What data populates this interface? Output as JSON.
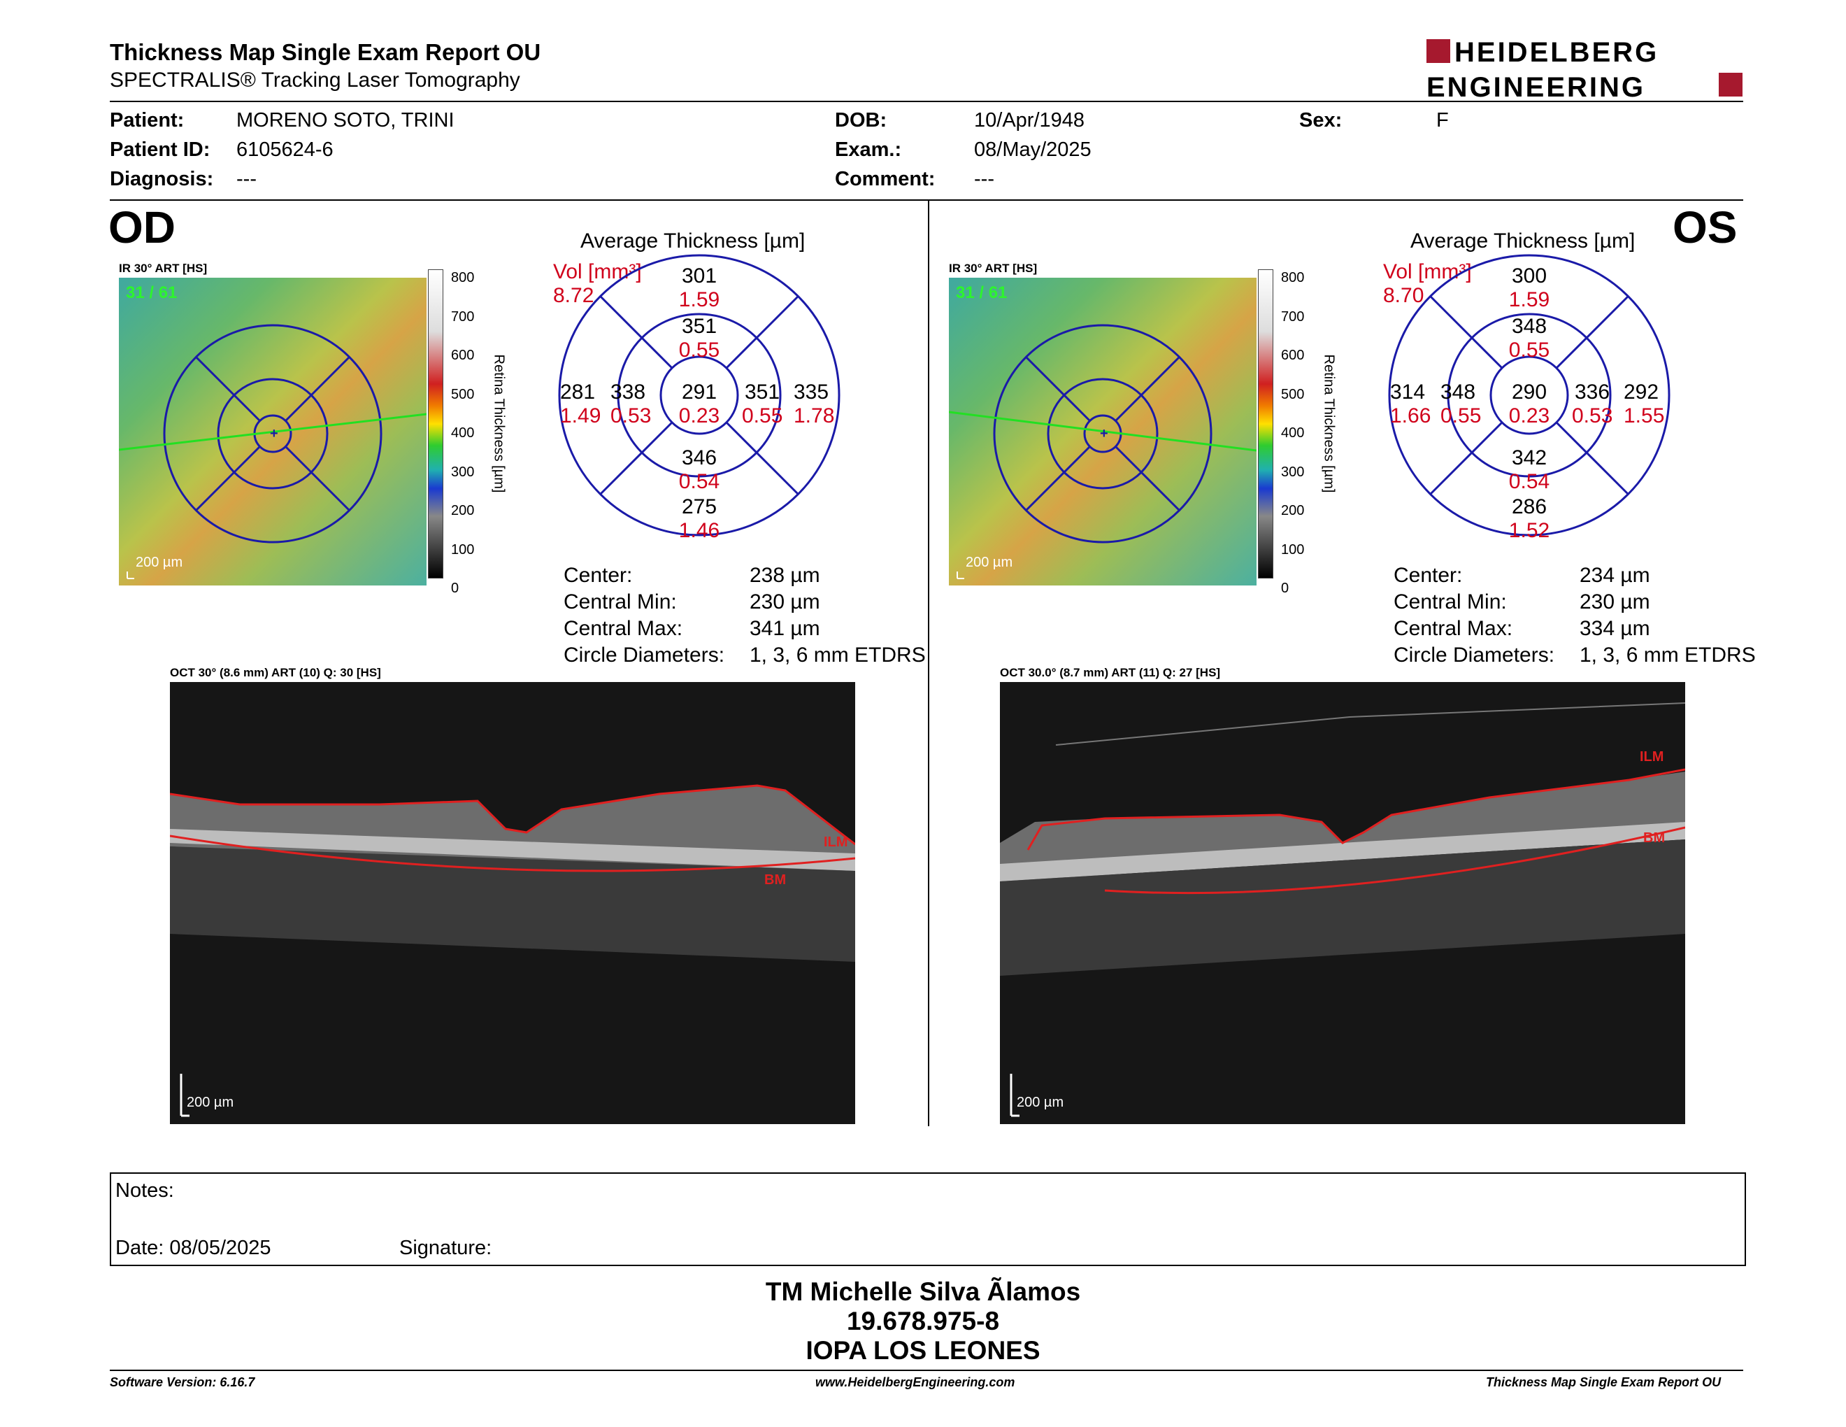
{
  "header": {
    "title": "Thickness Map Single Exam Report OU",
    "subtitle": "SPECTRALIS® Tracking Laser Tomography",
    "logo_line1": "HEIDELBERG",
    "logo_line2": "ENGINEERING"
  },
  "patient": {
    "patient_label": "Patient:",
    "patient": "MORENO SOTO, TRINI",
    "id_label": "Patient ID:",
    "id": "6105624-6",
    "diagnosis_label": "Diagnosis:",
    "diagnosis": "---",
    "dob_label": "DOB:",
    "dob": "10/Apr/1948",
    "exam_label": "Exam.:",
    "exam": "08/May/2025",
    "comment_label": "Comment:",
    "comment": "---",
    "sex_label": "Sex:",
    "sex": "F"
  },
  "scale": {
    "ticks": [
      "800",
      "700",
      "600",
      "500",
      "400",
      "300",
      "200",
      "100",
      "0"
    ],
    "label": "Retina Thickness [µm]"
  },
  "od": {
    "eye": "OD",
    "ir_label": "IR 30° ART [HS]",
    "frame": "31 / 61",
    "map_scale": "200 µm",
    "avg_title": "Average Thickness [µm]",
    "vol_label": "Vol [mm³]",
    "vol": "8.72",
    "sectors": {
      "outer_sup": "301",
      "outer_sup_v": "1.59",
      "inner_sup": "351",
      "inner_sup_v": "0.55",
      "outer_temp": "281",
      "outer_temp_v": "1.49",
      "inner_temp": "338",
      "inner_temp_v": "0.53",
      "center": "291",
      "center_v": "0.23",
      "inner_nas": "351",
      "inner_nas_v": "0.55",
      "outer_nas": "335",
      "outer_nas_v": "1.78",
      "inner_inf": "346",
      "inner_inf_v": "0.54",
      "outer_inf": "275",
      "outer_inf_v": "1.46"
    },
    "stats": {
      "center_label": "Center:",
      "center": "238 µm",
      "min_label": "Central Min:",
      "min": "230 µm",
      "max_label": "Central Max:",
      "max": "341 µm",
      "diam_label": "Circle Diameters:",
      "diam": "1, 3, 6 mm ETDRS"
    },
    "oct_label": "OCT 30° (8.6 mm) ART (10) Q: 30 [HS]",
    "oct_scale": "200 µm",
    "ilm": "ILM",
    "bm": "BM"
  },
  "os": {
    "eye": "OS",
    "ir_label": "IR 30° ART [HS]",
    "frame": "31 / 61",
    "map_scale": "200 µm",
    "avg_title": "Average Thickness [µm]",
    "vol_label": "Vol [mm³]",
    "vol": "8.70",
    "sectors": {
      "outer_sup": "300",
      "outer_sup_v": "1.59",
      "inner_sup": "348",
      "inner_sup_v": "0.55",
      "outer_temp": "314",
      "outer_temp_v": "1.66",
      "inner_temp": "348",
      "inner_temp_v": "0.55",
      "center": "290",
      "center_v": "0.23",
      "inner_nas": "336",
      "inner_nas_v": "0.53",
      "outer_nas": "292",
      "outer_nas_v": "1.55",
      "inner_inf": "342",
      "inner_inf_v": "0.54",
      "outer_inf": "286",
      "outer_inf_v": "1.52"
    },
    "stats": {
      "center_label": "Center:",
      "center": "234 µm",
      "min_label": "Central Min:",
      "min": "230 µm",
      "max_label": "Central Max:",
      "max": "334 µm",
      "diam_label": "Circle Diameters:",
      "diam": "1, 3, 6 mm ETDRS"
    },
    "oct_label": "OCT 30.0° (8.7 mm) ART (11) Q: 27 [HS]",
    "oct_scale": "200 µm",
    "ilm": "ILM",
    "bm": "BM"
  },
  "notes": {
    "notes_label": "Notes:",
    "date_label": "Date: 08/05/2025",
    "signature_label": "Signature:"
  },
  "signature_block": {
    "name": "TM Michelle Silva Ãlamos",
    "rut": "19.678.975-8",
    "org": "IOPA LOS LEONES"
  },
  "footer": {
    "software": "Software Version: 6.16.7",
    "url": "www.HeidelbergEngineering.com",
    "report": "Thickness Map Single Exam Report OU"
  },
  "colors": {
    "circle": "#1a1aa8",
    "volume_red": "#d0021b",
    "logo_red": "#a6192e"
  }
}
